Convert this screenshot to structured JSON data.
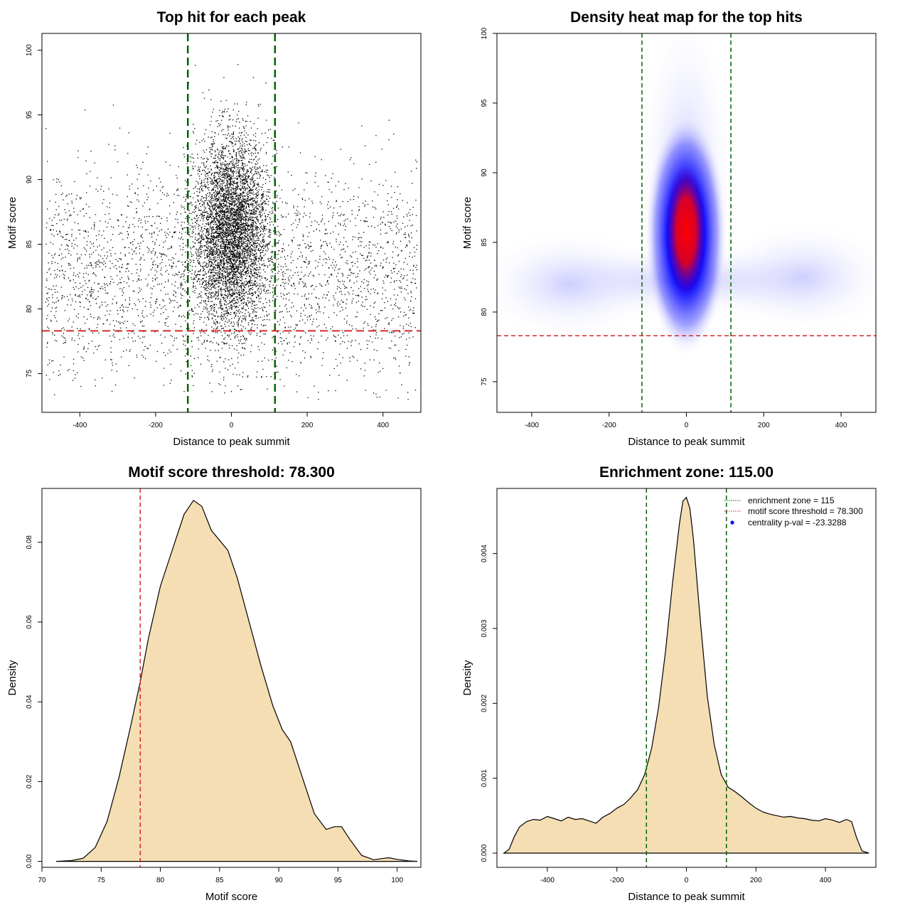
{
  "chart_data": [
    {
      "type": "scatter",
      "title": "Top hit for each peak",
      "xlabel": "Distance to peak summit",
      "ylabel": "Motif score",
      "xlim": [
        -500,
        500
      ],
      "ylim": [
        72,
        101.3
      ],
      "xticks": [
        -400,
        -200,
        0,
        200,
        400
      ],
      "yticks": [
        75,
        80,
        85,
        90,
        95,
        100
      ],
      "point_color": "#000000",
      "distributions": [
        {
          "kind": "background",
          "count": 3000,
          "x_range": [
            -490,
            490
          ],
          "y_mean": 82.5,
          "y_sd": 4.2,
          "y_range": [
            73,
            100
          ]
        },
        {
          "kind": "central",
          "count": 5200,
          "x_mean": 0,
          "x_sd": 48,
          "y_mean": 86,
          "y_sd": 3.6,
          "y_range": [
            74,
            100
          ]
        }
      ],
      "reference_lines": [
        {
          "orientation": "vertical",
          "value": -115,
          "color": "#006400",
          "style": "dashed"
        },
        {
          "orientation": "vertical",
          "value": 115,
          "color": "#006400",
          "style": "dashed"
        },
        {
          "orientation": "horizontal",
          "value": 78.3,
          "color": "#d62728",
          "style": "dashed"
        }
      ]
    },
    {
      "type": "heatmap",
      "title": "Density heat map for the top hits",
      "xlabel": "Distance to peak summit",
      "ylabel": "Motif score",
      "xlim": [
        -490,
        490
      ],
      "ylim": [
        72.8,
        100
      ],
      "xticks": [
        -400,
        -200,
        0,
        200,
        400
      ],
      "yticks": [
        75,
        80,
        85,
        90,
        95,
        100
      ],
      "colors": [
        "#ffffff",
        "#0000ff",
        "#ff0000"
      ],
      "hotspot": {
        "x": 0,
        "y": 85.5
      },
      "reference_lines": [
        {
          "orientation": "vertical",
          "value": -115,
          "color": "#006400",
          "style": "dashed"
        },
        {
          "orientation": "vertical",
          "value": 115,
          "color": "#006400",
          "style": "dashed"
        },
        {
          "orientation": "horizontal",
          "value": 78.3,
          "color": "#d62728",
          "style": "dashed"
        }
      ]
    },
    {
      "type": "area",
      "title": "Motif score threshold: 78.300",
      "xlabel": "Motif score",
      "ylabel": "Density",
      "xlim": [
        70,
        102
      ],
      "ylim": [
        -0.0015,
        0.0935
      ],
      "xticks": [
        70,
        75,
        80,
        85,
        90,
        95,
        100
      ],
      "yticks": [
        0.0,
        0.02,
        0.04,
        0.06,
        0.08
      ],
      "ytick_labels": [
        "0.00",
        "0.02",
        "0.04",
        "0.06",
        "0.08"
      ],
      "fill": "#f5deb3",
      "x": [
        71.2,
        72.5,
        73.5,
        74.5,
        75.5,
        76.5,
        77.5,
        78.3,
        79,
        80,
        81,
        82,
        82.8,
        83.5,
        84.3,
        85,
        85.7,
        86.5,
        87.5,
        88.5,
        89.5,
        90.3,
        91,
        92,
        93,
        94,
        94.7,
        95.3,
        96,
        97,
        98,
        98.7,
        99.3,
        100,
        101,
        101.7
      ],
      "y": [
        0.0,
        0.0002,
        0.0008,
        0.0035,
        0.01,
        0.021,
        0.034,
        0.045,
        0.056,
        0.069,
        0.078,
        0.087,
        0.0905,
        0.089,
        0.083,
        0.0805,
        0.078,
        0.071,
        0.06,
        0.049,
        0.039,
        0.033,
        0.03,
        0.021,
        0.012,
        0.008,
        0.0087,
        0.0087,
        0.0055,
        0.0015,
        0.0004,
        0.0007,
        0.0009,
        0.0005,
        0.0001,
        0.0
      ],
      "reference_lines": [
        {
          "orientation": "vertical",
          "value": 78.3,
          "color": "#d62728",
          "style": "dashed"
        }
      ]
    },
    {
      "type": "area",
      "title": "Enrichment zone: 115.00",
      "xlabel": "Distance to peak summit",
      "ylabel": "Density",
      "xlim": [
        -545,
        545
      ],
      "ylim": [
        -0.00019,
        0.00487
      ],
      "xticks": [
        -400,
        -200,
        0,
        200,
        400
      ],
      "yticks": [
        0.0,
        0.001,
        0.002,
        0.003,
        0.004
      ],
      "ytick_labels": [
        "0.000",
        "0.001",
        "0.002",
        "0.003",
        "0.004"
      ],
      "fill": "#f5deb3",
      "x": [
        -525,
        -510,
        -495,
        -480,
        -460,
        -440,
        -420,
        -400,
        -380,
        -360,
        -340,
        -320,
        -300,
        -280,
        -260,
        -240,
        -220,
        -200,
        -180,
        -160,
        -140,
        -120,
        -100,
        -80,
        -60,
        -40,
        -20,
        -10,
        0,
        10,
        20,
        40,
        60,
        80,
        100,
        120,
        140,
        160,
        180,
        200,
        220,
        240,
        260,
        280,
        300,
        320,
        340,
        360,
        380,
        400,
        420,
        440,
        460,
        475,
        490,
        505,
        525
      ],
      "y": [
        0.0,
        5e-05,
        0.00022,
        0.00035,
        0.00042,
        0.00045,
        0.00044,
        0.00049,
        0.00046,
        0.00043,
        0.00048,
        0.00045,
        0.00046,
        0.00043,
        0.0004,
        0.00048,
        0.00053,
        0.0006,
        0.00065,
        0.00074,
        0.00085,
        0.00105,
        0.0014,
        0.00195,
        0.0027,
        0.0036,
        0.0044,
        0.0047,
        0.00475,
        0.0046,
        0.0042,
        0.0031,
        0.0021,
        0.00145,
        0.00105,
        0.00088,
        0.00082,
        0.00075,
        0.00067,
        0.0006,
        0.00055,
        0.00052,
        0.0005,
        0.00048,
        0.00049,
        0.00047,
        0.00046,
        0.00044,
        0.00043,
        0.00046,
        0.00044,
        0.00041,
        0.00045,
        0.00042,
        0.0002,
        3e-05,
        0.0
      ],
      "reference_lines": [
        {
          "orientation": "vertical",
          "value": -115,
          "color": "#006400",
          "style": "dashed"
        },
        {
          "orientation": "vertical",
          "value": 115,
          "color": "#006400",
          "style": "dashed"
        }
      ],
      "legend": {
        "position": "top-right",
        "items": [
          {
            "label": "enrichment zone = 115",
            "color": "#006400",
            "symbol": "dotted-line"
          },
          {
            "label": "motif score threshold = 78.300",
            "color": "#d62728",
            "symbol": "dotted-line"
          },
          {
            "label": "centrality p-val = -23.3288",
            "color": "#0000ff",
            "symbol": "dot"
          }
        ]
      }
    }
  ]
}
